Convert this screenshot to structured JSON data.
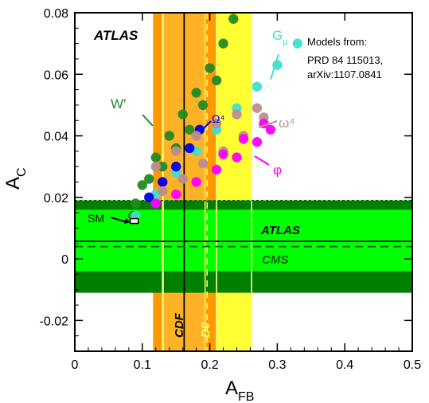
{
  "chart_data": {
    "type": "scatter",
    "xlabel": "A",
    "xlabel_sub": "FB",
    "ylabel": "A",
    "ylabel_sub": "C",
    "xlim": [
      0,
      0.5
    ],
    "ylim": [
      -0.03,
      0.08
    ],
    "xticks": [
      0,
      0.1,
      0.2,
      0.3,
      0.4,
      0.5
    ],
    "xtick_labels": [
      "0",
      "0.1",
      "0.2",
      "0.3",
      "0.4",
      "0.5"
    ],
    "yticks": [
      -0.02,
      0,
      0.02,
      0.04,
      0.06,
      0.08
    ],
    "ytick_labels": [
      "-0.02",
      "0",
      "0.02",
      "0.04",
      "0.06",
      "0.08"
    ],
    "top_left_label": "ATLAS",
    "models_note": [
      "Models from:",
      "PRD 84 115013,",
      "arXiv:1107.0841"
    ],
    "vertical_bands": [
      {
        "name": "CDF",
        "central": 0.162,
        "stat_low": 0.131,
        "stat_high": 0.193,
        "total_low": 0.116,
        "total_high": 0.21,
        "colors": {
          "outer": "#ff9900",
          "inner": "#ffbb33",
          "line": "#000000"
        }
      },
      {
        "name": "D0",
        "central": 0.196,
        "stat_low": 0.13,
        "stat_high": 0.21,
        "total_low": 0.13,
        "total_high": 0.262,
        "colors": {
          "outer": "#ffff33",
          "inner": "#ffdd44",
          "line": "#ffff66"
        }
      }
    ],
    "horizontal_bands": [
      {
        "name": "ATLAS",
        "central": 0.0057,
        "stat_low": -0.004,
        "stat_high": 0.016,
        "total_low": -0.011,
        "total_high": 0.019,
        "colors": {
          "outer": "#007f00",
          "inner": "#00ff00",
          "line": "#000000"
        }
      },
      {
        "name": "CMS",
        "central": 0.004,
        "stat_low": 0.0044,
        "stat_high": 0.0044,
        "colors": {
          "line": "#006600"
        }
      }
    ],
    "series": [
      {
        "name": "W′",
        "color": "#228b22",
        "points": [
          [
            0.086,
            0.014
          ],
          [
            0.1,
            0.024
          ],
          [
            0.12,
            0.033
          ],
          [
            0.14,
            0.04
          ],
          [
            0.16,
            0.047
          ],
          [
            0.18,
            0.054
          ],
          [
            0.2,
            0.062
          ],
          [
            0.22,
            0.07
          ],
          [
            0.235,
            0.078
          ],
          [
            0.09,
            0.018
          ],
          [
            0.11,
            0.026
          ],
          [
            0.13,
            0.03
          ],
          [
            0.15,
            0.036
          ],
          [
            0.17,
            0.042
          ],
          [
            0.19,
            0.05
          ],
          [
            0.21,
            0.058
          ]
        ]
      },
      {
        "name": "Gμ",
        "color": "#40e0d0",
        "points": [
          [
            0.09,
            0.014
          ],
          [
            0.12,
            0.021
          ],
          [
            0.15,
            0.028
          ],
          [
            0.18,
            0.035
          ],
          [
            0.21,
            0.042
          ],
          [
            0.24,
            0.049
          ],
          [
            0.27,
            0.056
          ],
          [
            0.3,
            0.063
          ],
          [
            0.33,
            0.07
          ]
        ]
      },
      {
        "name": "Ω⁴",
        "color": "#0000ee",
        "points": [
          [
            0.11,
            0.02
          ],
          [
            0.13,
            0.025
          ],
          [
            0.15,
            0.03
          ],
          [
            0.17,
            0.036
          ],
          [
            0.185,
            0.042
          ]
        ]
      },
      {
        "name": "ω⁴",
        "color": "#bc8f8f",
        "points": [
          [
            0.12,
            0.03
          ],
          [
            0.15,
            0.035
          ],
          [
            0.18,
            0.04
          ],
          [
            0.21,
            0.044
          ],
          [
            0.24,
            0.047
          ],
          [
            0.27,
            0.049
          ],
          [
            0.28,
            0.046
          ],
          [
            0.25,
            0.04
          ],
          [
            0.22,
            0.035
          ],
          [
            0.19,
            0.031
          ],
          [
            0.16,
            0.026
          ],
          [
            0.13,
            0.022
          ]
        ]
      },
      {
        "name": "φ",
        "color": "#ff00ff",
        "points": [
          [
            0.12,
            0.018
          ],
          [
            0.15,
            0.021
          ],
          [
            0.18,
            0.025
          ],
          [
            0.21,
            0.029
          ],
          [
            0.24,
            0.033
          ],
          [
            0.27,
            0.038
          ],
          [
            0.29,
            0.042
          ],
          [
            0.22,
            0.034
          ],
          [
            0.25,
            0.039
          ],
          [
            0.28,
            0.044
          ]
        ]
      }
    ],
    "sm_point": {
      "name": "SM",
      "x": 0.088,
      "y": 0.0123
    },
    "band_labels": [
      {
        "text": "CDF",
        "color": "#000000"
      },
      {
        "text": "D0",
        "color": "#ffff66"
      },
      {
        "text": "ATLAS",
        "color": "#000000"
      },
      {
        "text": "CMS",
        "color": "#006600"
      }
    ]
  }
}
